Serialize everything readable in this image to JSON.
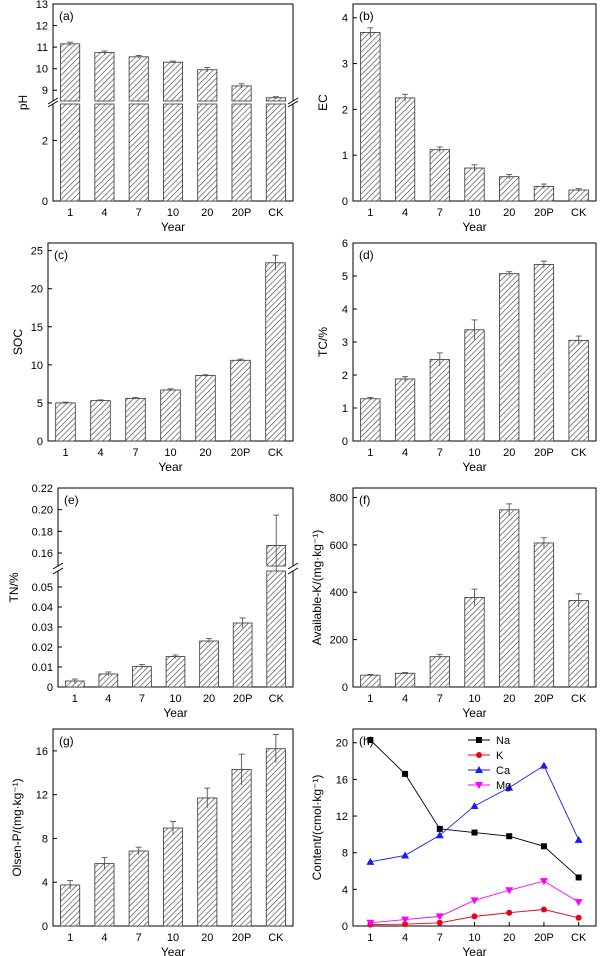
{
  "chart_data": [
    {
      "id": "a",
      "type": "bar",
      "panel_label": "(a)",
      "categories": [
        "1",
        "4",
        "7",
        "10",
        "20",
        "20P",
        "CK"
      ],
      "values": [
        11.15,
        10.75,
        10.55,
        10.3,
        9.95,
        9.2,
        8.65
      ],
      "errors": [
        0.08,
        0.07,
        0.06,
        0.05,
        0.1,
        0.1,
        0.05
      ],
      "xlabel": "Year",
      "ylabel": "pH",
      "broken_axis": true,
      "yticks": [
        0,
        2,
        9,
        10,
        11,
        12,
        13
      ],
      "tick_labels": [
        "0",
        "2",
        "9",
        "10",
        "11",
        "12",
        "13"
      ],
      "ylim": [
        0,
        13
      ]
    },
    {
      "id": "b",
      "type": "bar",
      "panel_label": "(b)",
      "categories": [
        "1",
        "4",
        "7",
        "10",
        "20",
        "20P",
        "CK"
      ],
      "values": [
        3.68,
        2.25,
        1.12,
        0.72,
        0.53,
        0.32,
        0.24
      ],
      "errors": [
        0.1,
        0.08,
        0.06,
        0.07,
        0.05,
        0.05,
        0.03
      ],
      "xlabel": "Year",
      "ylabel": "EC",
      "yticks": [
        0,
        1,
        2,
        3,
        4
      ],
      "tick_labels": [
        "0",
        "1",
        "2",
        "3",
        "4"
      ],
      "ylim": [
        0,
        4.3
      ]
    },
    {
      "id": "c",
      "type": "bar",
      "panel_label": "(c)",
      "categories": [
        "1",
        "4",
        "7",
        "10",
        "20",
        "20P",
        "CK"
      ],
      "values": [
        5.0,
        5.3,
        5.6,
        6.7,
        8.6,
        10.6,
        23.4
      ],
      "errors": [
        0.1,
        0.1,
        0.1,
        0.15,
        0.1,
        0.15,
        1.0
      ],
      "xlabel": "Year",
      "ylabel": "SOC",
      "yticks": [
        0,
        5,
        10,
        15,
        20,
        25
      ],
      "tick_labels": [
        "0",
        "5",
        "10",
        "15",
        "20",
        "25"
      ],
      "ylim": [
        0,
        26
      ]
    },
    {
      "id": "d",
      "type": "bar",
      "panel_label": "(d)",
      "categories": [
        "1",
        "4",
        "7",
        "10",
        "20",
        "20P",
        "CK"
      ],
      "values": [
        1.28,
        1.88,
        2.47,
        3.37,
        5.07,
        5.35,
        3.05
      ],
      "errors": [
        0.04,
        0.07,
        0.2,
        0.3,
        0.06,
        0.1,
        0.13
      ],
      "xlabel": "Year",
      "ylabel": "TC/%",
      "yticks": [
        0,
        1,
        2,
        3,
        4,
        5,
        6
      ],
      "tick_labels": [
        "0",
        "1",
        "2",
        "3",
        "4",
        "5",
        "6"
      ],
      "ylim": [
        0,
        6
      ]
    },
    {
      "id": "e",
      "type": "bar",
      "panel_label": "(e)",
      "categories": [
        "1",
        "4",
        "7",
        "10",
        "20",
        "20P",
        "CK"
      ],
      "values": [
        0.003,
        0.0065,
        0.0102,
        0.0152,
        0.023,
        0.032,
        0.167
      ],
      "errors": [
        0.001,
        0.001,
        0.001,
        0.0008,
        0.0012,
        0.0025,
        0.028
      ],
      "xlabel": "Year",
      "ylabel": "TN/%",
      "broken_axis": true,
      "yticks": [
        0,
        0.01,
        0.02,
        0.03,
        0.04,
        0.05,
        0.16,
        0.18,
        0.2,
        0.22
      ],
      "tick_labels": [
        "0",
        "0.01",
        "0.02",
        "0.03",
        "0.04",
        "0.05",
        "0.16",
        "0.18",
        "0.20",
        "0.22"
      ],
      "ylim": [
        0,
        0.22
      ]
    },
    {
      "id": "f",
      "type": "bar",
      "panel_label": "(f)",
      "categories": [
        "1",
        "4",
        "7",
        "10",
        "20",
        "20P",
        "CK"
      ],
      "values": [
        50,
        58,
        128,
        378,
        748,
        608,
        365
      ],
      "errors": [
        3,
        3,
        10,
        35,
        25,
        22,
        28
      ],
      "xlabel": "Year",
      "ylabel": "Available-K/(mg·kg⁻¹)",
      "yticks": [
        0,
        200,
        400,
        600,
        800
      ],
      "tick_labels": [
        "0",
        "200",
        "400",
        "600",
        "800"
      ],
      "ylim": [
        0,
        840
      ]
    },
    {
      "id": "g",
      "type": "bar",
      "panel_label": "(g)",
      "categories": [
        "1",
        "4",
        "7",
        "10",
        "20",
        "20P",
        "CK"
      ],
      "values": [
        3.75,
        5.7,
        6.85,
        8.95,
        11.7,
        14.3,
        16.2
      ],
      "errors": [
        0.4,
        0.55,
        0.35,
        0.6,
        0.9,
        1.4,
        1.3
      ],
      "xlabel": "Year",
      "ylabel": "Olsen-P/(mg·kg⁻¹)",
      "yticks": [
        0,
        4,
        8,
        12,
        16
      ],
      "tick_labels": [
        "0",
        "4",
        "8",
        "12",
        "16"
      ],
      "ylim": [
        0,
        18
      ]
    },
    {
      "id": "h",
      "type": "line",
      "panel_label": "(h)",
      "categories": [
        "1",
        "4",
        "7",
        "10",
        "20",
        "20P",
        "CK"
      ],
      "series": [
        {
          "name": "Na",
          "color": "#000000",
          "marker": "square",
          "values": [
            20.3,
            16.6,
            10.6,
            10.2,
            9.8,
            8.7,
            5.3
          ]
        },
        {
          "name": "K",
          "color": "#e8001c",
          "marker": "circle",
          "values": [
            0.15,
            0.2,
            0.35,
            1.05,
            1.45,
            1.8,
            0.9
          ]
        },
        {
          "name": "Ca",
          "color": "#1a1aff",
          "marker": "triangle-up",
          "values": [
            7.0,
            7.7,
            9.9,
            13.1,
            15.1,
            17.5,
            9.4
          ]
        },
        {
          "name": "Mg",
          "color": "#ff00ff",
          "marker": "triangle-down",
          "values": [
            0.35,
            0.7,
            1.05,
            2.8,
            3.9,
            4.9,
            2.6
          ]
        }
      ],
      "xlabel": "Year",
      "ylabel": "Content/(cmol·kg⁻¹)",
      "yticks": [
        0,
        4,
        8,
        12,
        16,
        20
      ],
      "tick_labels": [
        "0",
        "4",
        "8",
        "12",
        "16",
        "20"
      ],
      "ylim": [
        0,
        21.5
      ],
      "legend_position": "top"
    }
  ]
}
